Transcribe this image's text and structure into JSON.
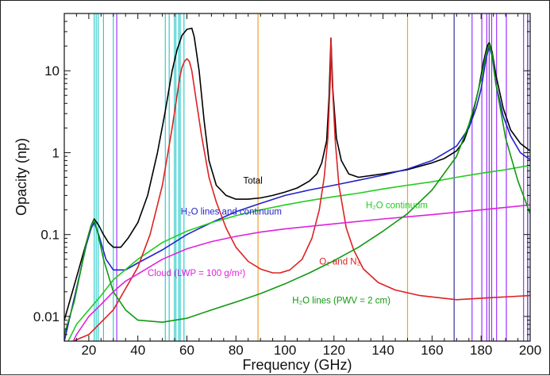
{
  "chart_data": {
    "type": "line",
    "title": "",
    "xlabel": "Frequency (GHz)",
    "ylabel": "Opacity (np)",
    "xlim": [
      10,
      200
    ],
    "ylim": [
      0.005,
      50
    ],
    "yscale": "log",
    "x_ticks": [
      20,
      40,
      60,
      80,
      100,
      120,
      140,
      160,
      180,
      200
    ],
    "x_tick_labels": [
      "20",
      "40",
      "60",
      "80",
      "100",
      "120",
      "140",
      "160",
      "180",
      "200"
    ],
    "y_ticks": [
      0.01,
      0.1,
      1,
      10
    ],
    "y_tick_labels": [
      "0.01",
      "0.1",
      "1",
      "10"
    ],
    "grid": false,
    "legend": "none",
    "series": [
      {
        "name": "Total",
        "color": "#000000",
        "x": [
          10,
          15,
          19,
          21,
          22.2,
          24,
          26,
          28,
          30,
          33,
          36,
          40,
          44,
          48,
          51,
          54,
          56,
          58,
          60,
          62,
          63,
          65,
          67,
          69,
          72,
          76,
          80,
          85,
          90,
          95,
          100,
          105,
          110,
          113,
          115,
          117,
          118,
          118.75,
          119.5,
          121,
          123,
          126,
          130,
          140,
          150,
          160,
          165,
          170,
          173,
          176,
          179,
          181,
          182.5,
          183.3,
          184.5,
          186,
          189,
          192,
          196,
          200
        ],
        "y": [
          0.009,
          0.03,
          0.08,
          0.13,
          0.155,
          0.13,
          0.1,
          0.08,
          0.07,
          0.07,
          0.09,
          0.14,
          0.3,
          1.0,
          3,
          10,
          18,
          27,
          32,
          33,
          26,
          10,
          2.5,
          0.8,
          0.4,
          0.3,
          0.27,
          0.27,
          0.28,
          0.3,
          0.33,
          0.37,
          0.45,
          0.55,
          0.75,
          1.4,
          5,
          25,
          6,
          1.5,
          0.8,
          0.55,
          0.5,
          0.55,
          0.62,
          0.75,
          0.85,
          1.05,
          1.4,
          2.5,
          6,
          13,
          20,
          22,
          17,
          9,
          3.5,
          1.9,
          1.3,
          1.05
        ]
      },
      {
        "name": "H2O lines and continuum",
        "color": "#2222cc",
        "x": [
          10,
          15,
          19,
          21,
          22.2,
          24,
          27,
          30,
          35,
          40,
          50,
          60,
          70,
          80,
          90,
          100,
          110,
          120,
          130,
          140,
          150,
          160,
          170,
          175,
          178,
          180,
          182,
          183.3,
          184.5,
          186,
          189,
          192,
          196,
          200
        ],
        "y": [
          0.005,
          0.022,
          0.075,
          0.12,
          0.14,
          0.1,
          0.05,
          0.037,
          0.037,
          0.045,
          0.065,
          0.1,
          0.14,
          0.19,
          0.24,
          0.3,
          0.35,
          0.4,
          0.46,
          0.53,
          0.63,
          0.8,
          1.2,
          2.0,
          3.5,
          6,
          14,
          20,
          15,
          7,
          2.8,
          1.6,
          1.0,
          0.82
        ]
      },
      {
        "name": "H2O continuum",
        "color": "#22cc22",
        "x": [
          10,
          15,
          20,
          25,
          30,
          40,
          50,
          60,
          70,
          80,
          90,
          100,
          110,
          120,
          130,
          140,
          150,
          160,
          170,
          180,
          190,
          200
        ],
        "y": [
          0.004,
          0.008,
          0.012,
          0.018,
          0.028,
          0.05,
          0.08,
          0.11,
          0.14,
          0.17,
          0.2,
          0.23,
          0.26,
          0.29,
          0.32,
          0.36,
          0.4,
          0.44,
          0.5,
          0.56,
          0.62,
          0.7
        ]
      },
      {
        "name": "O2 and N2",
        "color": "#dd2222",
        "x": [
          10,
          20,
          30,
          40,
          45,
          50,
          54,
          56,
          57,
          58,
          59,
          60,
          61,
          62,
          64,
          66,
          69,
          72,
          76,
          80,
          85,
          90,
          95,
          98,
          102,
          107,
          111,
          114,
          116,
          117.5,
          118.5,
          118.75,
          119.2,
          120.5,
          122,
          125,
          128,
          132,
          138,
          145,
          155,
          170,
          185,
          200
        ],
        "y": [
          0.0045,
          0.006,
          0.012,
          0.04,
          0.1,
          0.4,
          2,
          5,
          8,
          11,
          13,
          14,
          13,
          10,
          4,
          1.6,
          0.5,
          0.25,
          0.12,
          0.07,
          0.047,
          0.038,
          0.034,
          0.034,
          0.037,
          0.05,
          0.09,
          0.2,
          0.5,
          1.5,
          8,
          25,
          8,
          1.4,
          0.4,
          0.12,
          0.065,
          0.038,
          0.026,
          0.021,
          0.018,
          0.016,
          0.017,
          0.018
        ]
      },
      {
        "name": "Cloud (LWP = 100 g/m²)",
        "color": "#dd22dd",
        "x": [
          10,
          15,
          20,
          25,
          30,
          35,
          40,
          50,
          60,
          70,
          80,
          90,
          100,
          120,
          140,
          160,
          180,
          200
        ],
        "y": [
          0.003,
          0.006,
          0.01,
          0.014,
          0.02,
          0.027,
          0.033,
          0.05,
          0.067,
          0.082,
          0.095,
          0.107,
          0.117,
          0.135,
          0.155,
          0.175,
          0.2,
          0.23
        ]
      },
      {
        "name": "H2O lines (PWV = 2 cm)",
        "color": "#119911",
        "x": [
          10,
          14,
          17,
          19,
          21,
          22.2,
          23.5,
          26,
          30,
          35,
          40,
          50,
          60,
          70,
          80,
          90,
          100,
          110,
          120,
          130,
          140,
          150,
          160,
          170,
          175,
          178,
          180,
          182,
          183.3,
          184.5,
          186,
          190,
          195,
          200
        ],
        "y": [
          0.006,
          0.015,
          0.04,
          0.08,
          0.13,
          0.15,
          0.11,
          0.05,
          0.02,
          0.012,
          0.009,
          0.0085,
          0.0095,
          0.012,
          0.015,
          0.019,
          0.025,
          0.034,
          0.048,
          0.07,
          0.11,
          0.18,
          0.35,
          0.9,
          2.2,
          4.5,
          8,
          16,
          21,
          16,
          7,
          1.5,
          0.45,
          0.18
        ]
      }
    ],
    "annotations": [
      {
        "text": "Total",
        "x": 83,
        "y": 0.42,
        "color": "#000000"
      },
      {
        "text": "H₂O lines and continuum",
        "x": 57.5,
        "y": 0.175,
        "color": "#2222cc"
      },
      {
        "text": "H₂O continuum",
        "x": 133,
        "y": 0.21,
        "color": "#22cc22"
      },
      {
        "text": "O₂ and N₂",
        "x": 114,
        "y": 0.043,
        "color": "#dd2222"
      },
      {
        "text": "Cloud (LWP = 100 g/m²)",
        "x": 44,
        "y": 0.031,
        "color": "#dd22dd"
      },
      {
        "text": "H₂O lines (PWV = 2 cm)",
        "x": 103,
        "y": 0.0145,
        "color": "#119911"
      }
    ],
    "vertical_bands": [
      {
        "color": "#33cccc",
        "x": [
          22.2,
          23.0,
          23.8,
          26.0,
          30.0,
          51.2,
          52.8,
          54.9,
          55.5,
          56.7,
          57.3,
          58.8
        ]
      },
      {
        "color": "#9933ff",
        "x": [
          31.4,
          176.3,
          180.3,
          182.3,
          183.3,
          184.3,
          186.3,
          190.3,
          197.3
        ]
      },
      {
        "color": "#f0a030",
        "x": [
          89.0,
          150.0
        ]
      },
      {
        "color": "#333399",
        "x": [
          169.0,
          199.0
        ]
      }
    ]
  }
}
